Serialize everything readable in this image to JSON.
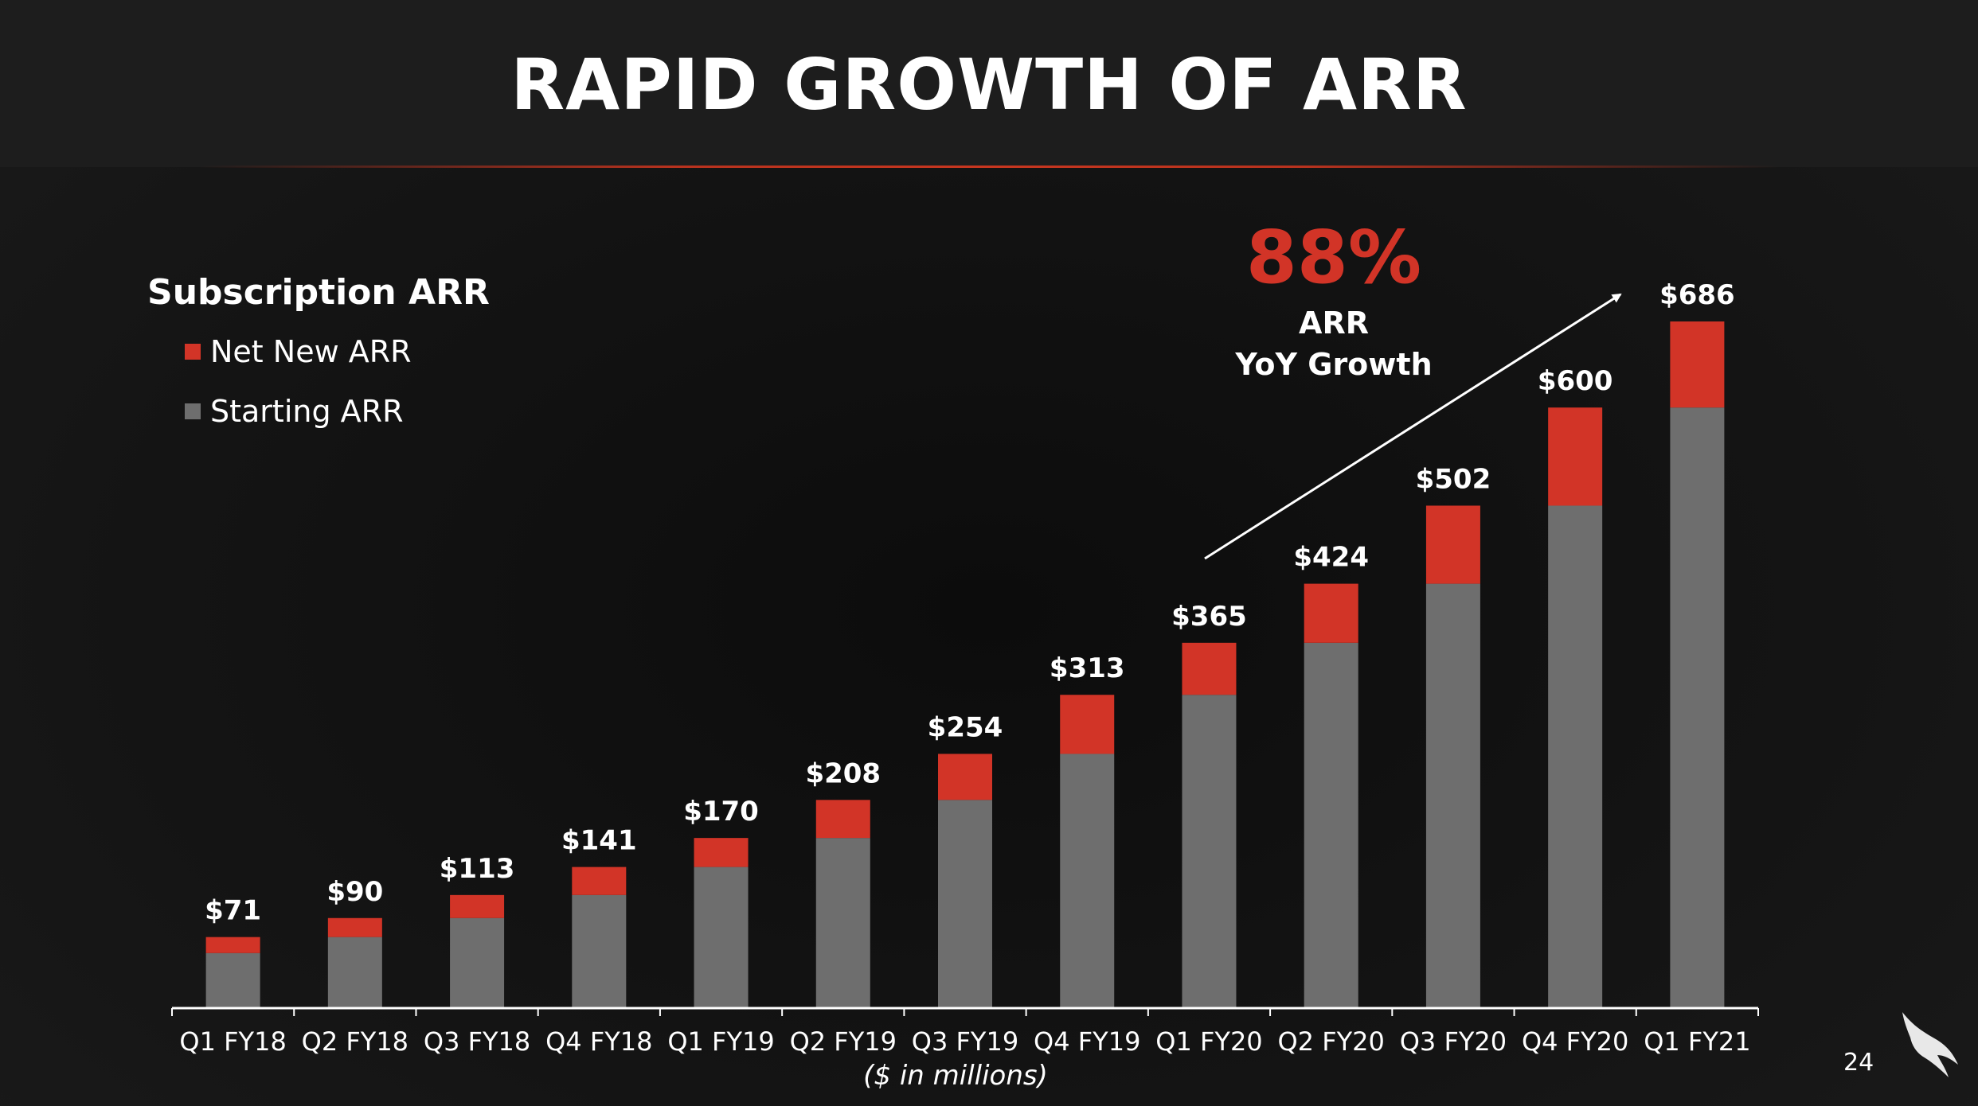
{
  "title": "RAPID GROWTH OF ARR",
  "legend": {
    "title": "Subscription ARR",
    "items": [
      {
        "label": "Net New ARR",
        "color": "#d23427"
      },
      {
        "label": "Starting ARR",
        "color": "#6e6e6e"
      }
    ]
  },
  "callout": {
    "percent": "88%",
    "line1": "ARR",
    "line2": "YoY Growth"
  },
  "units_note": "($ in millions)",
  "page_number": "24",
  "chart_data": {
    "type": "bar",
    "stacked": true,
    "title": "Subscription ARR",
    "xlabel": "($ in millions)",
    "ylabel": "",
    "ylim": [
      0,
      686
    ],
    "categories": [
      "Q1 FY18",
      "Q2 FY18",
      "Q3 FY18",
      "Q4 FY18",
      "Q1 FY19",
      "Q2 FY19",
      "Q3 FY19",
      "Q4 FY19",
      "Q1 FY20",
      "Q2 FY20",
      "Q3 FY20",
      "Q4 FY20",
      "Q1 FY21"
    ],
    "series": [
      {
        "name": "Starting ARR",
        "color": "#6e6e6e",
        "values": [
          55,
          71,
          90,
          113,
          141,
          170,
          208,
          254,
          313,
          365,
          424,
          502,
          600
        ]
      },
      {
        "name": "Net New ARR",
        "color": "#d23427",
        "values": [
          16,
          19,
          23,
          28,
          29,
          38,
          46,
          59,
          52,
          59,
          78,
          98,
          86
        ]
      }
    ],
    "totals": [
      71,
      90,
      113,
      141,
      170,
      208,
      254,
      313,
      365,
      424,
      502,
      600,
      686
    ],
    "data_labels": [
      "$71",
      "$90",
      "$113",
      "$141",
      "$170",
      "$208",
      "$254",
      "$313",
      "$365",
      "$424",
      "$502",
      "$600",
      "$686"
    ],
    "grid": false
  }
}
